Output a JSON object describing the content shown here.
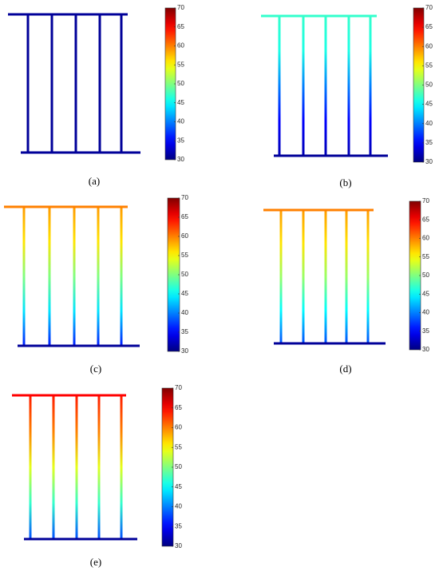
{
  "colorbar": {
    "lim": [
      30,
      70
    ],
    "ticks": [
      30,
      35,
      40,
      45,
      50,
      55,
      60,
      65,
      70
    ]
  },
  "panels": [
    {
      "label": "(a)",
      "top_bar": 31,
      "bottom_bar": 31,
      "rod_profile": [
        31,
        31,
        31,
        31,
        31
      ]
    },
    {
      "label": "(b)",
      "top_bar": 47,
      "bottom_bar": 31,
      "rod_profile": [
        47,
        46,
        40,
        35,
        32
      ]
    },
    {
      "label": "(c)",
      "top_bar": 60,
      "bottom_bar": 31,
      "rod_profile": [
        59,
        56,
        50,
        44,
        36
      ]
    },
    {
      "label": "(d)",
      "top_bar": 60,
      "bottom_bar": 31,
      "rod_profile": [
        59,
        56,
        51,
        45,
        38
      ]
    },
    {
      "label": "(e)",
      "top_bar": 65,
      "bottom_bar": 31,
      "rod_profile": [
        64,
        60,
        54,
        47,
        38
      ]
    }
  ]
}
